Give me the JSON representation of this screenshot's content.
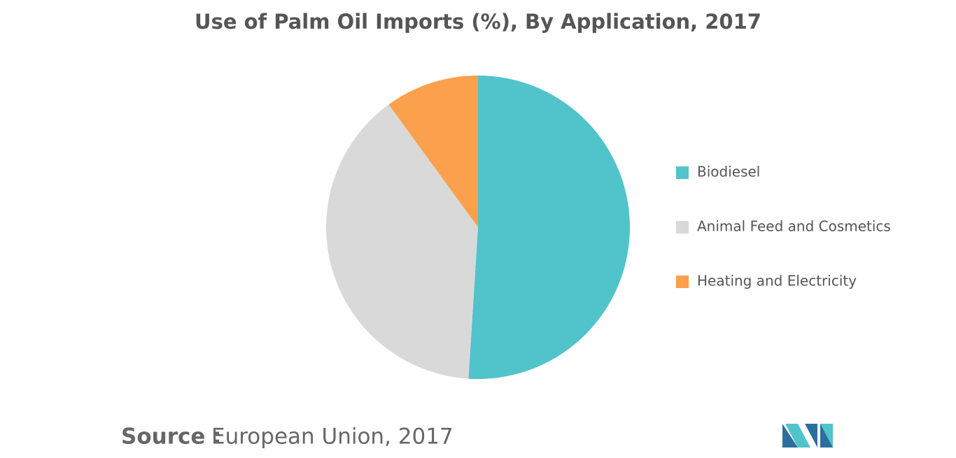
{
  "chart_data": {
    "type": "pie",
    "title": "Use of Palm Oil Imports (%), By Application, 2017",
    "categories": [
      "Biodiesel",
      "Animal Feed and Cosmetics",
      "Heating and Electricity"
    ],
    "values": [
      51,
      39,
      10
    ],
    "colors": [
      "#50c4ca",
      "#d9d9d9",
      "#fba04c"
    ],
    "legend": "right"
  },
  "source_label": "Source :",
  "source": "European Union, 2017"
}
